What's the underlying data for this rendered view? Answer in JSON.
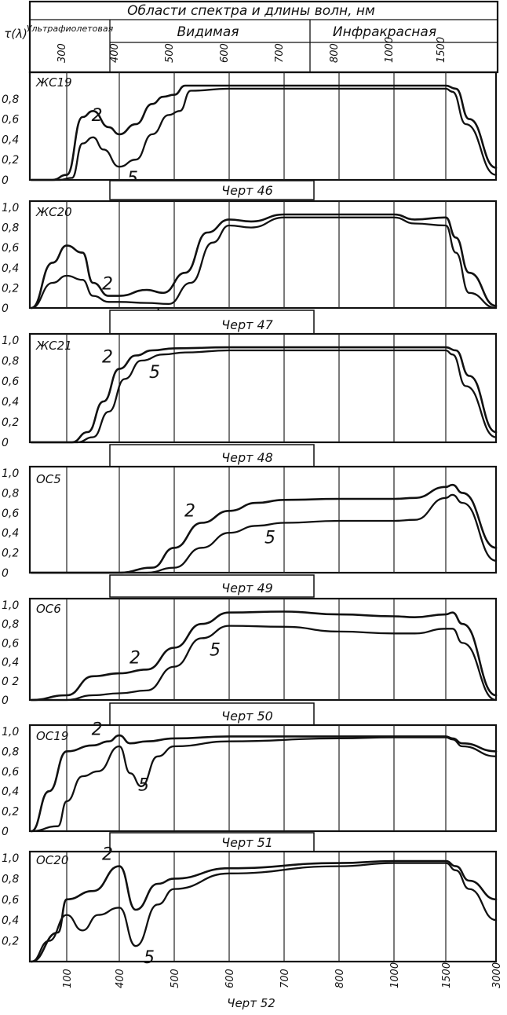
{
  "header": {
    "title": "Области спектра и длины волн, нм",
    "region_uv": "Ультрафиолетовая",
    "region_visible": "Видимая",
    "region_ir": "Инфракрасная"
  },
  "y_axis_label": "τ(λ)",
  "wavelength_ticks": [
    "300",
    "400",
    "500",
    "600",
    "700",
    "800",
    "1000",
    "1500",
    "3000"
  ],
  "bottom_caption": "Черт 52",
  "chart_data": [
    {
      "type": "line",
      "label": "ЖС19",
      "caption": "Черт 46",
      "x_categories": [
        "300",
        "400",
        "500",
        "600",
        "700",
        "800",
        "1000",
        "1500",
        "3000"
      ],
      "y_ticks": [
        "0",
        "0,2",
        "0,4",
        "0,6",
        "0,8"
      ],
      "ylim": [
        0,
        1.0
      ],
      "series": [
        {
          "name": "2",
          "x": [
            250,
            280,
            300,
            330,
            350,
            380,
            400,
            430,
            460,
            480,
            500,
            520,
            600,
            800,
            1500,
            1800,
            2200,
            3000
          ],
          "y": [
            0,
            0,
            0.05,
            0.62,
            0.68,
            0.52,
            0.45,
            0.55,
            0.75,
            0.82,
            0.84,
            0.93,
            0.93,
            0.93,
            0.93,
            0.9,
            0.6,
            0.12
          ]
        },
        {
          "name": "5",
          "x": [
            250,
            290,
            310,
            330,
            350,
            370,
            400,
            430,
            460,
            490,
            510,
            530,
            600,
            800,
            1500,
            1700,
            2100,
            3000
          ],
          "y": [
            0,
            0,
            0.02,
            0.36,
            0.42,
            0.3,
            0.13,
            0.2,
            0.45,
            0.64,
            0.68,
            0.88,
            0.9,
            0.9,
            0.9,
            0.87,
            0.55,
            0.05
          ]
        }
      ]
    },
    {
      "type": "line",
      "label": "ЖС20",
      "caption": "Черт 47",
      "x_categories": [
        "300",
        "400",
        "500",
        "600",
        "700",
        "800",
        "1000",
        "1500",
        "3000"
      ],
      "y_ticks": [
        "0",
        "0,2",
        "0,4",
        "0,6",
        "0,8",
        "1,0"
      ],
      "ylim": [
        0,
        1.0
      ],
      "series": [
        {
          "name": "2",
          "x": [
            250,
            280,
            300,
            330,
            350,
            380,
            400,
            450,
            480,
            520,
            560,
            600,
            640,
            700,
            800,
            1000,
            1200,
            1500,
            1800,
            2200,
            3000
          ],
          "y": [
            0,
            0.45,
            0.62,
            0.55,
            0.25,
            0.12,
            0.12,
            0.18,
            0.15,
            0.35,
            0.75,
            0.88,
            0.86,
            0.93,
            0.93,
            0.93,
            0.88,
            0.9,
            0.7,
            0.35,
            0.02
          ]
        },
        {
          "name": "5",
          "x": [
            250,
            280,
            300,
            330,
            350,
            380,
            400,
            450,
            490,
            530,
            570,
            600,
            640,
            700,
            800,
            1000,
            1200,
            1500,
            1800,
            2200,
            3000
          ],
          "y": [
            0,
            0.25,
            0.32,
            0.28,
            0.12,
            0.06,
            0.06,
            0.05,
            0.04,
            0.25,
            0.65,
            0.82,
            0.8,
            0.9,
            0.9,
            0.9,
            0.84,
            0.82,
            0.55,
            0.15,
            0.0
          ]
        }
      ]
    },
    {
      "type": "line",
      "label": "ЖС21",
      "caption": "Черт 48",
      "x_categories": [
        "300",
        "400",
        "500",
        "600",
        "700",
        "800",
        "1000",
        "1500",
        "3000"
      ],
      "y_ticks": [
        "0",
        "0,2",
        "0,4",
        "0,6",
        "0,8",
        "1,0"
      ],
      "ylim": [
        0,
        1.0
      ],
      "series": [
        {
          "name": "2",
          "x": [
            250,
            310,
            340,
            370,
            400,
            430,
            460,
            500,
            600,
            800,
            1500,
            1800,
            2200,
            3000
          ],
          "y": [
            0,
            0,
            0.1,
            0.4,
            0.72,
            0.85,
            0.9,
            0.92,
            0.93,
            0.93,
            0.93,
            0.9,
            0.65,
            0.1
          ]
        },
        {
          "name": "5",
          "x": [
            250,
            320,
            350,
            380,
            410,
            440,
            480,
            520,
            600,
            800,
            1500,
            1700,
            2100,
            3000
          ],
          "y": [
            0,
            0,
            0.05,
            0.3,
            0.62,
            0.8,
            0.86,
            0.88,
            0.9,
            0.9,
            0.9,
            0.86,
            0.55,
            0.05
          ]
        }
      ]
    },
    {
      "type": "line",
      "label": "ОС5",
      "caption": "Черт 49",
      "x_categories": [
        "300",
        "400",
        "500",
        "600",
        "700",
        "800",
        "1000",
        "1500",
        "3000"
      ],
      "y_ticks": [
        "0",
        "0,2",
        "0,4",
        "0,6",
        "0,8",
        "1,0"
      ],
      "ylim": [
        0,
        1.0
      ],
      "series": [
        {
          "name": "2",
          "x": [
            250,
            400,
            460,
            500,
            550,
            600,
            650,
            700,
            800,
            1000,
            1200,
            1500,
            1700,
            2000,
            3000
          ],
          "y": [
            0,
            0,
            0.05,
            0.25,
            0.5,
            0.62,
            0.7,
            0.73,
            0.74,
            0.74,
            0.75,
            0.86,
            0.88,
            0.8,
            0.25
          ]
        },
        {
          "name": "5",
          "x": [
            250,
            450,
            500,
            550,
            600,
            650,
            700,
            800,
            1000,
            1200,
            1500,
            1700,
            2000,
            3000
          ],
          "y": [
            0,
            0,
            0.05,
            0.25,
            0.4,
            0.47,
            0.5,
            0.52,
            0.52,
            0.53,
            0.75,
            0.78,
            0.7,
            0.12
          ]
        }
      ]
    },
    {
      "type": "line",
      "label": "ОС6",
      "caption": "Черт 50",
      "x_categories": [
        "300",
        "400",
        "500",
        "600",
        "700",
        "800",
        "1000",
        "1500",
        "3000"
      ],
      "y_ticks": [
        "0",
        "0 2",
        "0,4",
        "0,6",
        "0,8",
        "1,0"
      ],
      "ylim": [
        0,
        1.0
      ],
      "series": [
        {
          "name": "2",
          "x": [
            250,
            300,
            350,
            400,
            450,
            500,
            550,
            600,
            700,
            800,
            1000,
            1200,
            1500,
            1700,
            2000,
            3000
          ],
          "y": [
            0,
            0.05,
            0.25,
            0.28,
            0.32,
            0.55,
            0.8,
            0.92,
            0.93,
            0.9,
            0.88,
            0.87,
            0.9,
            0.92,
            0.8,
            0.05
          ]
        },
        {
          "name": "5",
          "x": [
            250,
            300,
            350,
            400,
            450,
            500,
            550,
            600,
            700,
            800,
            1000,
            1200,
            1500,
            1700,
            2000,
            3000
          ],
          "y": [
            0,
            0,
            0.05,
            0.07,
            0.1,
            0.35,
            0.65,
            0.78,
            0.77,
            0.72,
            0.7,
            0.7,
            0.75,
            0.75,
            0.6,
            0.0
          ]
        }
      ]
    },
    {
      "type": "line",
      "label": "ОС19",
      "caption": "Черт 51",
      "x_categories": [
        "100",
        "400",
        "500",
        "600",
        "700",
        "800",
        "1000",
        "1500",
        "3000"
      ],
      "y_ticks": [
        "0",
        "0,2",
        "0,4",
        "0,6",
        "0,8",
        "1,0"
      ],
      "ylim": [
        0,
        1.0
      ],
      "series": [
        {
          "name": "2",
          "x": [
            100,
            200,
            300,
            350,
            380,
            400,
            420,
            450,
            500,
            600,
            800,
            1000,
            1500,
            1700,
            2000,
            3000
          ],
          "y": [
            0,
            0.4,
            0.8,
            0.86,
            0.9,
            0.96,
            0.88,
            0.9,
            0.93,
            0.95,
            0.95,
            0.95,
            0.95,
            0.93,
            0.88,
            0.8
          ]
        },
        {
          "name": "5",
          "x": [
            100,
            250,
            300,
            330,
            360,
            400,
            420,
            440,
            470,
            500,
            600,
            800,
            1000,
            1500,
            1700,
            2000,
            3000
          ],
          "y": [
            0,
            0.05,
            0.3,
            0.55,
            0.6,
            0.85,
            0.58,
            0.45,
            0.75,
            0.85,
            0.9,
            0.93,
            0.94,
            0.94,
            0.92,
            0.85,
            0.75
          ]
        }
      ]
    },
    {
      "type": "line",
      "label": "ОС20",
      "caption": "Черт 52",
      "x_categories": [
        "100",
        "400",
        "500",
        "600",
        "700",
        "800",
        "1000",
        "1500",
        "3000"
      ],
      "y_ticks": [
        "0,2",
        "0,4",
        "0,6",
        "0,8",
        "1,0"
      ],
      "ylim": [
        0,
        1.0
      ],
      "series": [
        {
          "name": "2",
          "x": [
            100,
            250,
            300,
            350,
            400,
            430,
            470,
            500,
            600,
            800,
            1000,
            1500,
            1800,
            2200,
            3000
          ],
          "y": [
            0,
            0.28,
            0.6,
            0.68,
            0.92,
            0.5,
            0.75,
            0.8,
            0.9,
            0.95,
            0.97,
            0.97,
            0.92,
            0.78,
            0.6
          ]
        },
        {
          "name": "5",
          "x": [
            100,
            200,
            300,
            330,
            360,
            400,
            430,
            470,
            500,
            600,
            800,
            1000,
            1500,
            1800,
            2200,
            3000
          ],
          "y": [
            0,
            0.2,
            0.45,
            0.3,
            0.45,
            0.52,
            0.15,
            0.55,
            0.7,
            0.85,
            0.92,
            0.95,
            0.95,
            0.88,
            0.7,
            0.4
          ]
        }
      ]
    }
  ]
}
